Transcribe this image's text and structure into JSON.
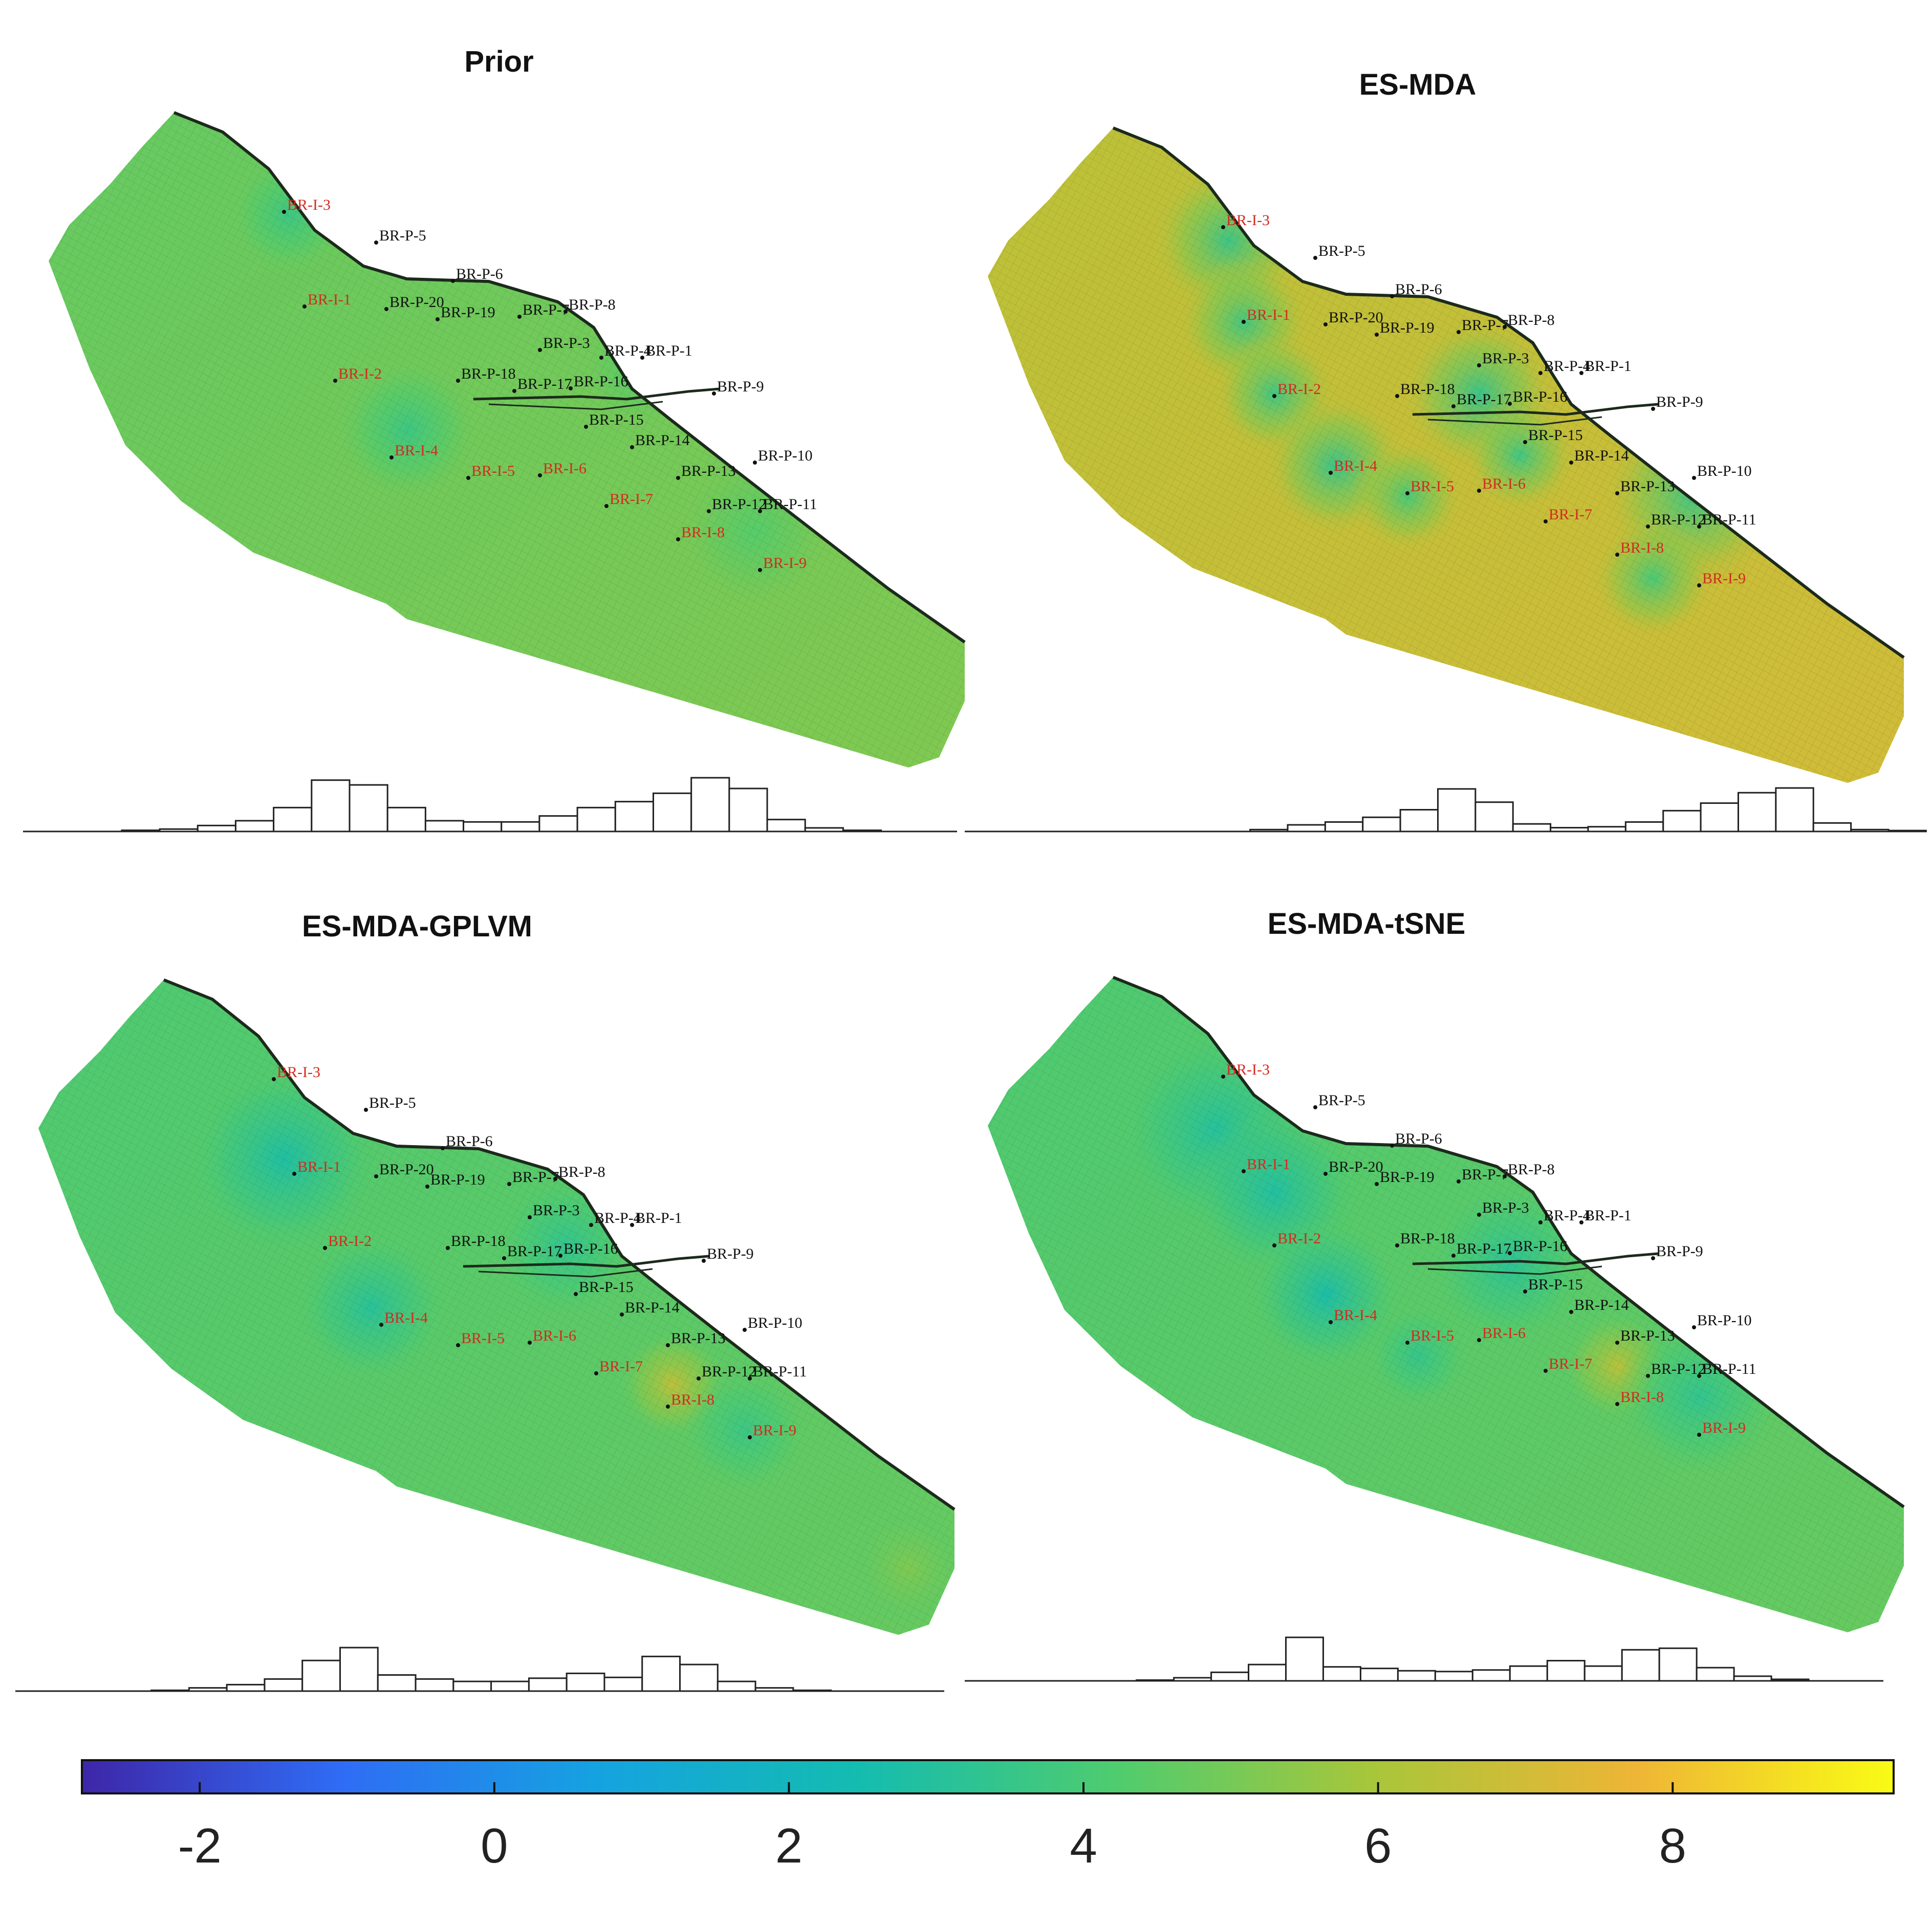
{
  "figure": {
    "colormap": [
      "#3e26a8",
      "#2f6cf5",
      "#15a3e0",
      "#14bcb0",
      "#4fcc6e",
      "#a9c63a",
      "#eeb536",
      "#f9fb15"
    ],
    "colorbar": {
      "range": [
        -2.8,
        9.5
      ],
      "ticks": [
        -2,
        0,
        2,
        4,
        6,
        8
      ],
      "tick_labels": [
        "-2",
        "0",
        "2",
        "4",
        "6",
        "8"
      ]
    },
    "well_names": [
      "BR-I-3",
      "BR-P-5",
      "BR-P-6",
      "BR-I-1",
      "BR-P-20",
      "BR-P-19",
      "BR-P-7",
      "BR-P-8",
      "BR-P-3",
      "BR-P-4",
      "BR-P-1",
      "BR-I-2",
      "BR-P-18",
      "BR-P-17",
      "BR-P-16",
      "BR-P-9",
      "BR-P-15",
      "BR-P-14",
      "BR-P-10",
      "BR-I-4",
      "BR-I-5",
      "BR-I-6",
      "BR-P-13",
      "BR-I-7",
      "BR-P-12",
      "BR-P-11",
      "BR-I-8",
      "BR-I-9"
    ],
    "injector_color": "#d42a1e",
    "producer_color": "#111111"
  },
  "chart_data": [
    {
      "type": "heatmap",
      "title": "Prior",
      "histogram": {
        "type": "bar",
        "x": [
          -2.0,
          -1.5,
          -1.0,
          -0.5,
          0.0,
          0.5,
          1.0,
          1.5,
          2.0,
          2.5,
          3.0,
          3.5,
          4.0,
          4.5,
          5.0,
          5.5,
          6.0,
          6.5,
          7.0,
          7.5,
          8.0,
          8.5
        ],
        "values": [
          0,
          1,
          2,
          5,
          9,
          20,
          43,
          39,
          20,
          9,
          8,
          8,
          13,
          20,
          25,
          32,
          45,
          36,
          10,
          3,
          1,
          0
        ]
      }
    },
    {
      "type": "heatmap",
      "title": "ES-MDA",
      "histogram": {
        "type": "bar",
        "x": [
          0.5,
          1.0,
          1.5,
          2.0,
          2.5,
          3.0,
          3.5,
          4.0,
          4.5,
          5.0,
          5.5,
          6.0,
          6.5,
          7.0,
          7.5,
          8.0,
          8.5,
          9.0,
          9.5,
          10.0
        ],
        "values": [
          0,
          2,
          7,
          10,
          15,
          23,
          45,
          31,
          8,
          4,
          5,
          10,
          22,
          30,
          41,
          46,
          9,
          2,
          1,
          0
        ]
      }
    },
    {
      "type": "heatmap",
      "title": "ES-MDA-GPLVM",
      "histogram": {
        "type": "bar",
        "x": [
          -1.5,
          -1.0,
          -0.5,
          0.0,
          0.5,
          1.0,
          1.5,
          2.0,
          2.5,
          3.0,
          3.5,
          4.0,
          4.5,
          5.0,
          5.5,
          6.0,
          6.5,
          7.0,
          7.5,
          8.0
        ],
        "values": [
          0,
          1,
          4,
          8,
          15,
          38,
          54,
          20,
          15,
          12,
          12,
          16,
          22,
          17,
          43,
          33,
          12,
          4,
          1,
          0
        ]
      }
    },
    {
      "type": "heatmap",
      "title": "ES-MDA-tSNE",
      "histogram": {
        "type": "bar",
        "x": [
          -1.0,
          -0.5,
          0.0,
          0.5,
          1.0,
          1.5,
          2.0,
          2.5,
          3.0,
          3.5,
          4.0,
          4.5,
          5.0,
          5.5,
          6.0,
          6.5,
          7.0,
          7.5,
          8.0,
          8.5
        ],
        "values": [
          0,
          1,
          4,
          11,
          21,
          56,
          18,
          16,
          13,
          12,
          14,
          19,
          26,
          19,
          40,
          42,
          17,
          6,
          2,
          0
        ]
      }
    }
  ]
}
